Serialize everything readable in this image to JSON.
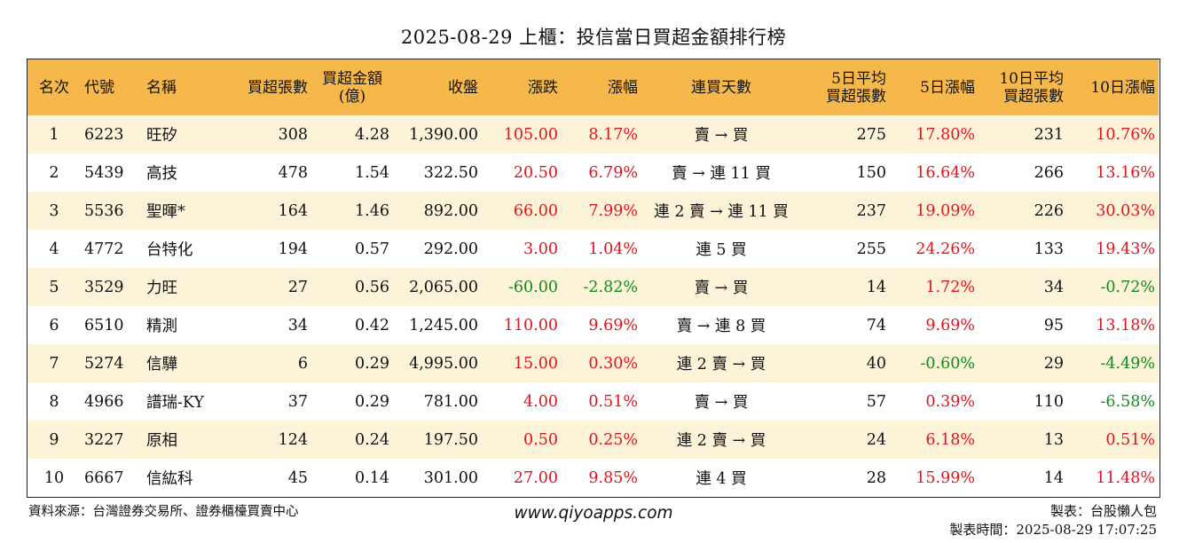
{
  "title": "2025-08-29 上櫃：投信當日買超金額排行榜",
  "colors": {
    "header_bg": "#f6b84a",
    "stripe_bg": "#fdf3d8",
    "up": "#e0141e",
    "down": "#138a1c"
  },
  "headers": {
    "rank": "名次",
    "code": "代號",
    "name": "名稱",
    "buy_lots": "買超張數",
    "buy_amount_1": "買超金額",
    "buy_amount_2": "(億)",
    "close": "收盤",
    "change": "漲跌",
    "pct": "漲幅",
    "streak": "連買天數",
    "avg5_1": "5日平均",
    "avg5_2": "買超張數",
    "pct5": "5日漲幅",
    "avg10_1": "10日平均",
    "avg10_2": "買超張數",
    "pct10": "10日漲幅"
  },
  "rows": [
    {
      "rank": "1",
      "code": "6223",
      "name": "旺矽",
      "buy_lots": "308",
      "amount": "4.28",
      "close": "1,390.00",
      "change": "105.00",
      "change_dir": "up",
      "pct": "8.17%",
      "pct_dir": "up",
      "streak": "賣 → 買",
      "avg5": "275",
      "pct5": "17.80%",
      "pct5_dir": "up",
      "avg10": "231",
      "pct10": "10.76%",
      "pct10_dir": "up"
    },
    {
      "rank": "2",
      "code": "5439",
      "name": "高技",
      "buy_lots": "478",
      "amount": "1.54",
      "close": "322.50",
      "change": "20.50",
      "change_dir": "up",
      "pct": "6.79%",
      "pct_dir": "up",
      "streak": "賣 → 連 11 買",
      "avg5": "150",
      "pct5": "16.64%",
      "pct5_dir": "up",
      "avg10": "266",
      "pct10": "13.16%",
      "pct10_dir": "up"
    },
    {
      "rank": "3",
      "code": "5536",
      "name": "聖暉*",
      "buy_lots": "164",
      "amount": "1.46",
      "close": "892.00",
      "change": "66.00",
      "change_dir": "up",
      "pct": "7.99%",
      "pct_dir": "up",
      "streak": "連 2 賣 → 連 11 買",
      "avg5": "237",
      "pct5": "19.09%",
      "pct5_dir": "up",
      "avg10": "226",
      "pct10": "30.03%",
      "pct10_dir": "up"
    },
    {
      "rank": "4",
      "code": "4772",
      "name": "台特化",
      "buy_lots": "194",
      "amount": "0.57",
      "close": "292.00",
      "change": "3.00",
      "change_dir": "up",
      "pct": "1.04%",
      "pct_dir": "up",
      "streak": "連 5 買",
      "avg5": "255",
      "pct5": "24.26%",
      "pct5_dir": "up",
      "avg10": "133",
      "pct10": "19.43%",
      "pct10_dir": "up"
    },
    {
      "rank": "5",
      "code": "3529",
      "name": "力旺",
      "buy_lots": "27",
      "amount": "0.56",
      "close": "2,065.00",
      "change": "-60.00",
      "change_dir": "down",
      "pct": "-2.82%",
      "pct_dir": "down",
      "streak": "賣 → 買",
      "avg5": "14",
      "pct5": "1.72%",
      "pct5_dir": "up",
      "avg10": "34",
      "pct10": "-0.72%",
      "pct10_dir": "down"
    },
    {
      "rank": "6",
      "code": "6510",
      "name": "精測",
      "buy_lots": "34",
      "amount": "0.42",
      "close": "1,245.00",
      "change": "110.00",
      "change_dir": "up",
      "pct": "9.69%",
      "pct_dir": "up",
      "streak": "賣 → 連 8 買",
      "avg5": "74",
      "pct5": "9.69%",
      "pct5_dir": "up",
      "avg10": "95",
      "pct10": "13.18%",
      "pct10_dir": "up"
    },
    {
      "rank": "7",
      "code": "5274",
      "name": "信驊",
      "buy_lots": "6",
      "amount": "0.29",
      "close": "4,995.00",
      "change": "15.00",
      "change_dir": "up",
      "pct": "0.30%",
      "pct_dir": "up",
      "streak": "連 2 賣 → 買",
      "avg5": "40",
      "pct5": "-0.60%",
      "pct5_dir": "down",
      "avg10": "29",
      "pct10": "-4.49%",
      "pct10_dir": "down"
    },
    {
      "rank": "8",
      "code": "4966",
      "name": "譜瑞-KY",
      "buy_lots": "37",
      "amount": "0.29",
      "close": "781.00",
      "change": "4.00",
      "change_dir": "up",
      "pct": "0.51%",
      "pct_dir": "up",
      "streak": "賣 → 買",
      "avg5": "57",
      "pct5": "0.39%",
      "pct5_dir": "up",
      "avg10": "110",
      "pct10": "-6.58%",
      "pct10_dir": "down"
    },
    {
      "rank": "9",
      "code": "3227",
      "name": "原相",
      "buy_lots": "124",
      "amount": "0.24",
      "close": "197.50",
      "change": "0.50",
      "change_dir": "up",
      "pct": "0.25%",
      "pct_dir": "up",
      "streak": "連 2 賣 → 買",
      "avg5": "24",
      "pct5": "6.18%",
      "pct5_dir": "up",
      "avg10": "13",
      "pct10": "0.51%",
      "pct10_dir": "up"
    },
    {
      "rank": "10",
      "code": "6667",
      "name": "信紘科",
      "buy_lots": "45",
      "amount": "0.14",
      "close": "301.00",
      "change": "27.00",
      "change_dir": "up",
      "pct": "9.85%",
      "pct_dir": "up",
      "streak": "連 4 買",
      "avg5": "28",
      "pct5": "15.99%",
      "pct5_dir": "up",
      "avg10": "14",
      "pct10": "11.48%",
      "pct10_dir": "up"
    }
  ],
  "footer": {
    "source": "資料來源：台灣證券交易所、證券櫃檯買賣中心",
    "website": "www.qiyoapps.com",
    "author": "製表：台股懶人包",
    "made_time": "製表時間：2025-08-29 17:07:25"
  }
}
